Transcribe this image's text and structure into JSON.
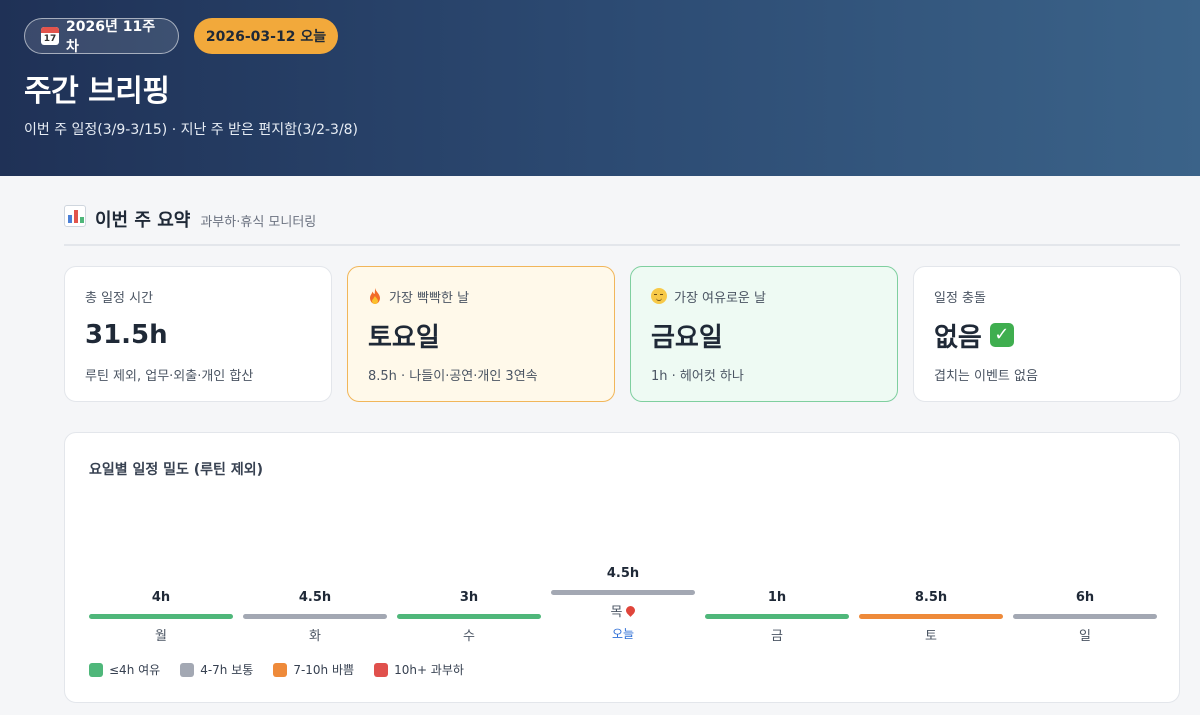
{
  "header": {
    "week_badge": "2026년 11주차",
    "week_icon_day": "17",
    "today_badge": "2026-03-12 오늘",
    "title": "주간 브리핑",
    "subtitle": "이번 주 일정(3/9-3/15) · 지난 주 받은 편지함(3/2-3/8)"
  },
  "summary": {
    "title": "이번 주 요약",
    "desc": "과부하·휴식 모니터링",
    "cards": [
      {
        "label": "총 일정 시간",
        "value": "31.5h",
        "desc": "루틴 제외, 업무·외출·개인 합산",
        "icon": "none"
      },
      {
        "label": "가장 빡빡한 날",
        "value": "토요일",
        "desc": "8.5h · 나들이·공연·개인 3연속",
        "icon": "fire-icon"
      },
      {
        "label": "가장 여유로운 날",
        "value": "금요일",
        "desc": "1h · 헤어컷 하나",
        "icon": "relieved-face-icon"
      },
      {
        "label": "일정 충돌",
        "value": "없음",
        "desc": "겹치는 이벤트 없음",
        "icon": "check-mark-icon"
      }
    ]
  },
  "density": {
    "title": "요일별 일정 밀도 (루틴 제외)",
    "today_label": "오늘",
    "days": [
      {
        "name": "월",
        "value_label": "4h",
        "hours": 4,
        "level": "light",
        "today": false
      },
      {
        "name": "화",
        "value_label": "4.5h",
        "hours": 4.5,
        "level": "normal",
        "today": false
      },
      {
        "name": "수",
        "value_label": "3h",
        "hours": 3,
        "level": "light",
        "today": false
      },
      {
        "name": "목",
        "value_label": "4.5h",
        "hours": 4.5,
        "level": "normal",
        "today": true
      },
      {
        "name": "금",
        "value_label": "1h",
        "hours": 1,
        "level": "light",
        "today": false
      },
      {
        "name": "토",
        "value_label": "8.5h",
        "hours": 8.5,
        "level": "busy",
        "today": false
      },
      {
        "name": "일",
        "value_label": "6h",
        "hours": 6,
        "level": "normal",
        "today": false
      }
    ],
    "legend": [
      {
        "key": "light",
        "label": "≤4h 여유",
        "color": "#4fb77a"
      },
      {
        "key": "normal",
        "label": "4-7h 보통",
        "color": "#a3a8b3"
      },
      {
        "key": "busy",
        "label": "7-10h 바쁨",
        "color": "#ee8a3a"
      },
      {
        "key": "overload",
        "label": "10h+ 과부하",
        "color": "#e0504c"
      }
    ]
  }
}
